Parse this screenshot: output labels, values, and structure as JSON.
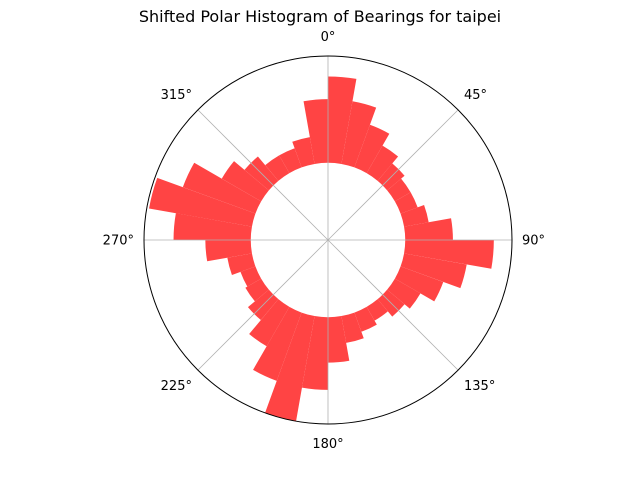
{
  "chart_data": {
    "type": "bar",
    "projection": "polar",
    "title": "Shifted Polar Histogram of Bearings for taipei",
    "theta_direction": "clockwise",
    "theta_zero": "north",
    "theta_tick_labels": [
      "0°",
      "45°",
      "90°",
      "135°",
      "180°",
      "225°",
      "270°",
      "315°"
    ],
    "bin_width_deg": 10,
    "bin_centers_deg": [
      -5,
      5,
      15,
      25,
      35,
      45,
      55,
      65,
      75,
      85,
      95,
      105,
      115,
      125,
      135,
      145,
      155,
      165,
      175,
      185,
      195,
      205,
      215,
      225,
      235,
      245,
      255,
      265,
      275,
      285,
      295,
      305,
      315,
      325,
      335,
      345
    ],
    "values": [
      0.62,
      0.72,
      0.62,
      0.54,
      0.48,
      0.44,
      0.42,
      0.42,
      0.45,
      0.55,
      0.73,
      0.62,
      0.54,
      0.47,
      0.44,
      0.41,
      0.43,
      0.46,
      0.54,
      0.66,
      0.81,
      0.66,
      0.54,
      0.46,
      0.42,
      0.41,
      0.45,
      0.54,
      0.68,
      0.8,
      0.68,
      0.54,
      0.48,
      0.43,
      0.43,
      0.46
    ],
    "r_offset": 0.34,
    "rlim": [
      0,
      0.81
    ],
    "color": "#ff4040",
    "radial_grid": "on",
    "angular_grid": "on"
  }
}
